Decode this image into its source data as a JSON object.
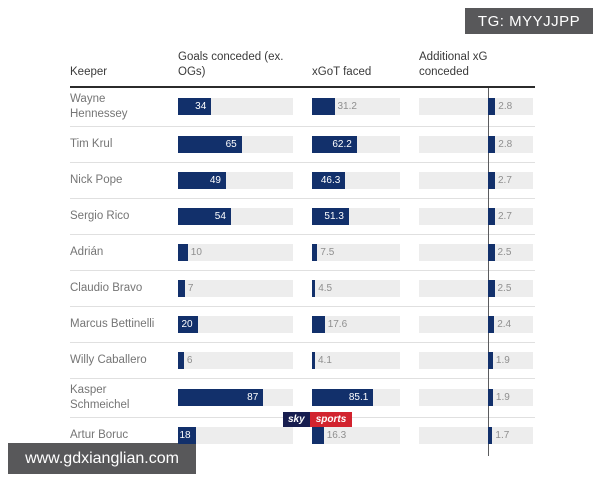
{
  "badge": {
    "text": "TG: MYYJJPP"
  },
  "watermark": {
    "text": "www.gdxianglian.com"
  },
  "logo": {
    "sky": "sky",
    "sports": "sports"
  },
  "colors": {
    "bar_navy": "#12306b",
    "track_grey": "#ededed",
    "logo_navy": "#171d4f",
    "logo_red": "#d2232e",
    "badge_grey": "#58585a",
    "value_grey": "#8f8f8f"
  },
  "chart_data": {
    "type": "bar",
    "orientation": "horizontal",
    "columns": [
      "Keeper",
      "Goals conceded (ex. OGs)",
      "xGoT faced",
      "Additional xG conceded"
    ],
    "rows": [
      {
        "keeper": "Wayne\nHennessey",
        "goals_conceded": 34,
        "xgot_faced": 31.2,
        "additional_xg": 2.8
      },
      {
        "keeper": "Tim Krul",
        "goals_conceded": 65,
        "xgot_faced": 62.2,
        "additional_xg": 2.8
      },
      {
        "keeper": "Nick Pope",
        "goals_conceded": 49,
        "xgot_faced": 46.3,
        "additional_xg": 2.7
      },
      {
        "keeper": "Sergio Rico",
        "goals_conceded": 54,
        "xgot_faced": 51.3,
        "additional_xg": 2.7
      },
      {
        "keeper": "Adrián",
        "goals_conceded": 10,
        "xgot_faced": 7.5,
        "additional_xg": 2.5
      },
      {
        "keeper": "Claudio Bravo",
        "goals_conceded": 7,
        "xgot_faced": 4.5,
        "additional_xg": 2.5
      },
      {
        "keeper": "Marcus Bettinelli",
        "goals_conceded": 20,
        "xgot_faced": 17.6,
        "additional_xg": 2.4
      },
      {
        "keeper": "Willy Caballero",
        "goals_conceded": 6,
        "xgot_faced": 4.1,
        "additional_xg": 1.9
      },
      {
        "keeper": "Kasper\nSchmeichel",
        "goals_conceded": 87,
        "xgot_faced": 85.1,
        "additional_xg": 1.9
      },
      {
        "keeper": "Artur Boruc",
        "goals_conceded": 18,
        "xgot_faced": 16.3,
        "additional_xg": 1.7
      }
    ]
  }
}
